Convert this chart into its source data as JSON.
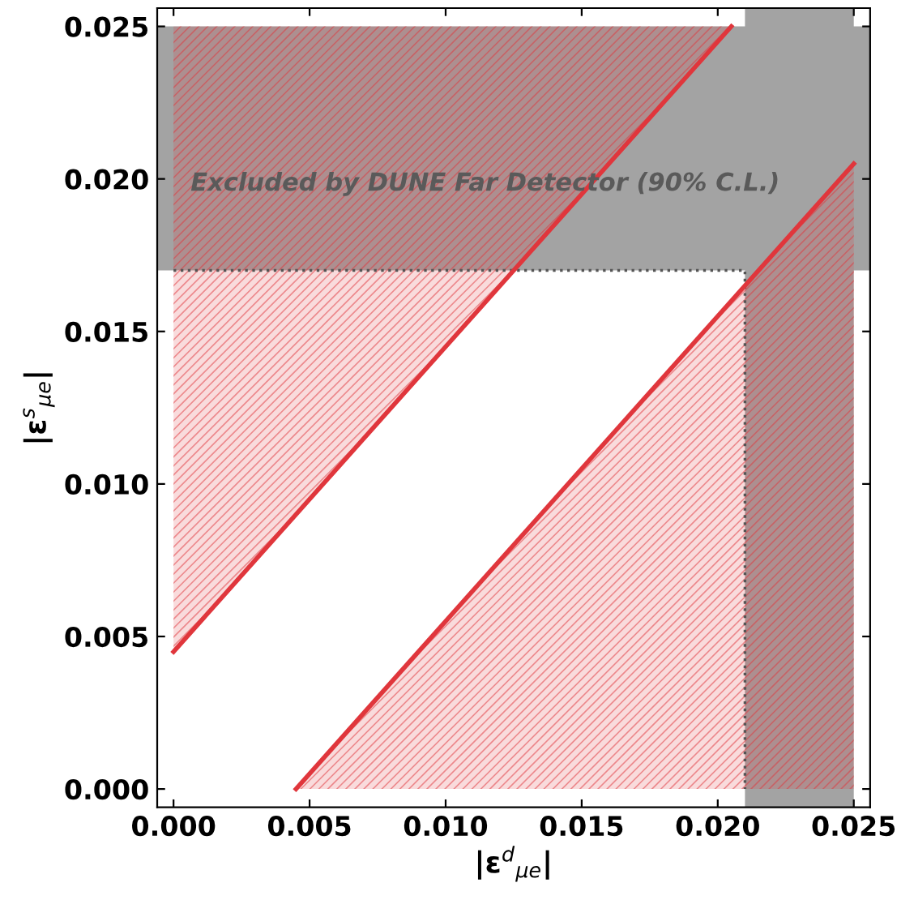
{
  "chart_data": {
    "type": "line",
    "xlabel": "|ε$^{d}$$_{μe}$|",
    "ylabel": "|ε$^{s}$$_{μe}$|",
    "xlim": [
      -0.0006,
      0.0256
    ],
    "ylim": [
      -0.0006,
      0.0256
    ],
    "xticks": [
      {
        "value": 0,
        "label": "0.000"
      },
      {
        "value": 0.005,
        "label": "0.005"
      },
      {
        "value": 0.01,
        "label": "0.010"
      },
      {
        "value": 0.015,
        "label": "0.015"
      },
      {
        "value": 0.02,
        "label": "0.020"
      },
      {
        "value": 0.025,
        "label": "0.025"
      }
    ],
    "yticks": [
      {
        "value": 0,
        "label": "0.000"
      },
      {
        "value": 0.005,
        "label": "0.005"
      },
      {
        "value": 0.01,
        "label": "0.010"
      },
      {
        "value": 0.015,
        "label": "0.015"
      },
      {
        "value": 0.02,
        "label": "0.020"
      },
      {
        "value": 0.025,
        "label": "0.025"
      }
    ],
    "grid": false,
    "legend": false,
    "bands": [
      {
        "axis": "y",
        "from": 0.017,
        "to": 0.025,
        "color": "#a3a3a3"
      },
      {
        "axis": "x",
        "from": 0.021,
        "to": 0.025,
        "color": "#a3a3a3"
      }
    ],
    "series": [
      {
        "color": "#555555",
        "line_style": "dotted",
        "x": [
          0,
          0.021,
          0.021
        ],
        "values": [
          0.017,
          0.017,
          0
        ]
      },
      {
        "color": "#e0363c",
        "x": [
          0,
          0.0205
        ],
        "values": [
          0.0045,
          0.025
        ],
        "lower": [
          0.0045,
          0.025
        ],
        "upper": [
          0.025,
          0.025
        ]
      },
      {
        "color": "#e0363c",
        "x": [
          0.0045,
          0.025
        ],
        "values": [
          0,
          0.0205
        ],
        "lower": [
          0,
          0
        ],
        "upper": [
          0,
          0.0205
        ]
      }
    ],
    "annotations": [
      "Excluded by DUNE Far Detector (90% C.L.)"
    ]
  }
}
